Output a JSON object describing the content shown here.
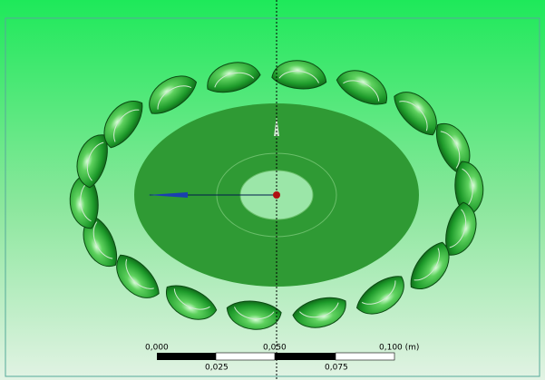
{
  "scale_bar": {
    "top_labels": [
      "0,000",
      "0,050",
      "0,100 (m)"
    ],
    "bottom_labels": [
      "0,025",
      "0,075"
    ]
  }
}
